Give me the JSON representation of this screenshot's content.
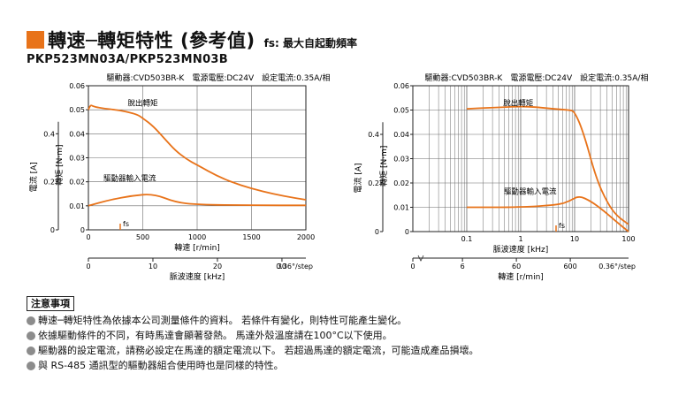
{
  "title": {
    "main": "轉速─轉矩特性 (參考值)",
    "note": "fs: 最大自起動頻率",
    "model": "PKP523MN03A/PKP523MN03B"
  },
  "colors": {
    "accent": "#e8731a",
    "curve": "#e8731a",
    "grid": "#6a6a6a"
  },
  "chart_data": [
    {
      "type": "line",
      "header": "驅動器:CVD503BR-K　電源電壓:DC24V　設定電流:0.35A/相",
      "xlabel": "轉速 [r/min]",
      "x2label": "脈波速度 [kHz]",
      "ylabel": "轉矩 [N·m]",
      "ylabel2": "電流 [A]",
      "xscale": "linear",
      "xlim": [
        0,
        2000
      ],
      "ylim": [
        0,
        0.06
      ],
      "y2lim": [
        0,
        0.6
      ],
      "xticks": [
        "0",
        "500",
        "1000",
        "1500",
        "2000"
      ],
      "yticks": [
        "0",
        "0.01",
        "0.02",
        "0.03",
        "0.04",
        "0.05",
        "0.06"
      ],
      "y2ticks": [
        "0",
        "0.2",
        "0.4"
      ],
      "x2ticks": [
        "0",
        "10",
        "20",
        "30"
      ],
      "x2unit": "0.36°/step",
      "fs_label": "fs",
      "grid": true,
      "series": [
        {
          "name": "脫出轉矩",
          "axis": "torque",
          "x": [
            0,
            20,
            40,
            80,
            150,
            250,
            350,
            450,
            500,
            600,
            700,
            800,
            900,
            1000,
            1200,
            1400,
            1600,
            1800,
            2000
          ],
          "y": [
            0.05,
            0.052,
            0.0515,
            0.051,
            0.0505,
            0.05,
            0.0492,
            0.048,
            0.0465,
            0.043,
            0.038,
            0.033,
            0.0295,
            0.027,
            0.022,
            0.0185,
            0.016,
            0.014,
            0.0125
          ]
        },
        {
          "name": "驅動器輸入電流",
          "axis": "current",
          "x": [
            0,
            200,
            400,
            600,
            800,
            1000,
            1500,
            2000
          ],
          "y": [
            0.1,
            0.125,
            0.142,
            0.15,
            0.115,
            0.105,
            0.102,
            0.102
          ]
        }
      ]
    },
    {
      "type": "line",
      "header": "驅動器:CVD503BR-K　電源電壓:DC24V　設定電流:0.35A/相",
      "xlabel": "脈波速度 [kHz]",
      "x2label": "轉速 [r/min]",
      "ylabel": "轉矩 [N·m]",
      "ylabel2": "電流 [A]",
      "xscale": "log",
      "xlim": [
        0.01,
        100
      ],
      "ylim": [
        0,
        0.06
      ],
      "y2lim": [
        0,
        0.6
      ],
      "xticks": [
        "0.1",
        "1",
        "10",
        "100"
      ],
      "yticks": [
        "0",
        "0.01",
        "0.02",
        "0.03",
        "0.04",
        "0.05",
        "0.06"
      ],
      "y2ticks": [
        "0",
        "0.2",
        "0.4"
      ],
      "x2ticks": [
        "0",
        "6",
        "60",
        "600"
      ],
      "x2unit": "0.36°/step",
      "fs_label": "fs",
      "grid": true,
      "series": [
        {
          "name": "脫出轉矩",
          "axis": "torque",
          "x": [
            0.1,
            0.3,
            1,
            2,
            4,
            8,
            10,
            15,
            25,
            40,
            60,
            100
          ],
          "y": [
            0.0505,
            0.051,
            0.0515,
            0.0512,
            0.0505,
            0.05,
            0.0495,
            0.04,
            0.022,
            0.012,
            0.0065,
            0.003
          ]
        },
        {
          "name": "驅動器輸入電流",
          "axis": "current",
          "x": [
            0.1,
            1,
            5,
            8,
            12,
            20,
            35,
            60,
            100
          ],
          "y": [
            0.1,
            0.1,
            0.11,
            0.125,
            0.148,
            0.125,
            0.085,
            0.04,
            0.0
          ]
        }
      ]
    }
  ],
  "notes": {
    "title": "注意事項",
    "items": [
      "轉速─轉矩特性為依據本公司測量條件的資料。 若條件有變化，則特性可能產生變化。",
      "依據驅動條件的不同，有時馬達會顯著發熱。 馬達外殼溫度請在100°C以下使用。",
      "驅動器的設定電流，請務必設定在馬達的額定電流以下。 若超過馬達的額定電流，可能造成產品損壞。",
      "與 RS-485 通訊型的驅動器組合使用時也是同樣的特性。"
    ]
  }
}
